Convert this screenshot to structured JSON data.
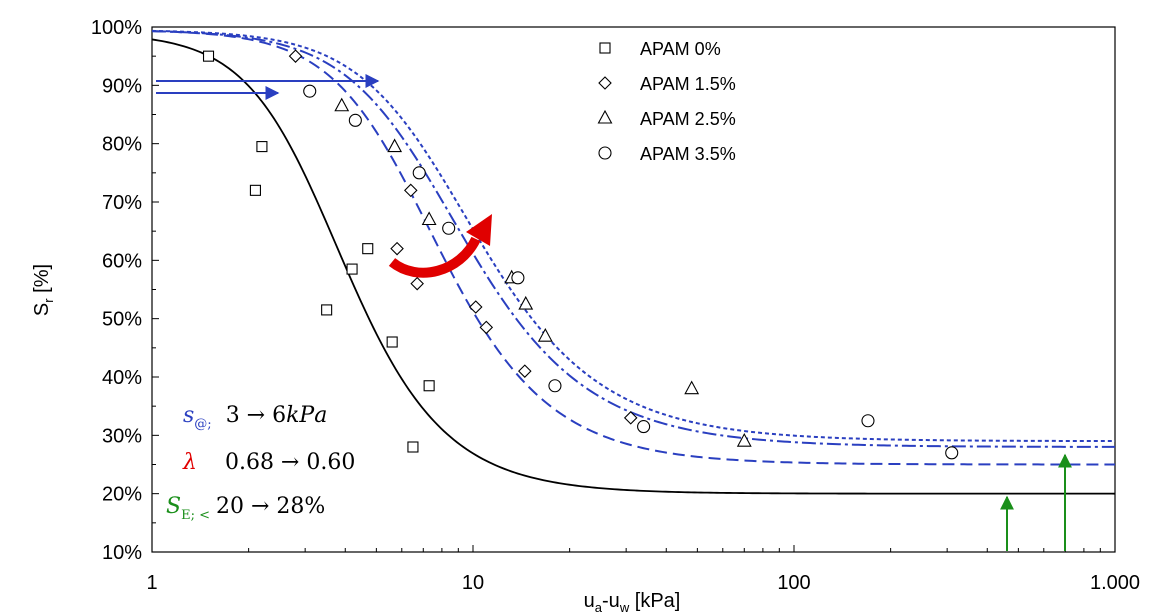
{
  "chart_data": {
    "type": "scatter",
    "x_axis": {
      "label_main": "u",
      "label_sub_a": "a",
      "label_mid": "-u",
      "label_sub_w": "w",
      "label_tail": " [kPa]",
      "scale": "log",
      "range": [
        1,
        1000
      ],
      "ticks": [
        1,
        10,
        100,
        1000
      ],
      "tick_labels": [
        "1",
        "10",
        "100",
        "1.000"
      ]
    },
    "y_axis": {
      "label_main": "S",
      "label_sub": "r",
      "label_tail": " [%]",
      "range": [
        10,
        100
      ],
      "ticks": [
        10,
        20,
        30,
        40,
        50,
        60,
        70,
        80,
        90,
        100
      ],
      "tick_labels": [
        "10%",
        "20%",
        "30%",
        "40%",
        "50%",
        "60%",
        "70%",
        "80%",
        "90%",
        "100%"
      ]
    },
    "grid": false,
    "legend_position": "top-center",
    "series": [
      {
        "name": "APAM 0%",
        "marker": "square",
        "points": [
          [
            1.5,
            95
          ],
          [
            2.1,
            72
          ],
          [
            2.2,
            79.5
          ],
          [
            3.5,
            51.5
          ],
          [
            4.2,
            58.5
          ],
          [
            4.7,
            62
          ],
          [
            5.6,
            46
          ],
          [
            6.5,
            28
          ],
          [
            7.3,
            38.5
          ]
        ]
      },
      {
        "name": "APAM 1.5%",
        "marker": "diamond",
        "points": [
          [
            2.8,
            95
          ],
          [
            5.8,
            62
          ],
          [
            6.4,
            72
          ],
          [
            6.7,
            56
          ],
          [
            10.2,
            52
          ],
          [
            11,
            48.5
          ],
          [
            14.5,
            41
          ],
          [
            31,
            33
          ]
        ]
      },
      {
        "name": "APAM 2.5%",
        "marker": "triangle",
        "points": [
          [
            3.9,
            86.5
          ],
          [
            5.7,
            79.5
          ],
          [
            7.3,
            67
          ],
          [
            13.2,
            57
          ],
          [
            14.6,
            52.5
          ],
          [
            16.8,
            47
          ],
          [
            48,
            38
          ],
          [
            70,
            29
          ]
        ]
      },
      {
        "name": "APAM 3.5%",
        "marker": "circle",
        "points": [
          [
            3.1,
            89
          ],
          [
            4.3,
            84
          ],
          [
            6.8,
            75
          ],
          [
            8.4,
            65.5
          ],
          [
            13.8,
            57
          ],
          [
            18,
            38.5
          ],
          [
            34,
            31.5
          ],
          [
            170,
            32.5
          ],
          [
            310,
            27
          ]
        ]
      }
    ],
    "fitted_curves": [
      {
        "style": "solid",
        "color": "#000000",
        "Sres": 20,
        "Smax": 99,
        "alpha": 0.3,
        "n": 3.2
      },
      {
        "style": "long-dash",
        "color": "#2a3fc0",
        "Sres": 25,
        "Smax": 99.5,
        "alpha": 0.158,
        "n": 2.95
      },
      {
        "style": "dash-dot",
        "color": "#2a3fc0",
        "Sres": 28,
        "Smax": 99.5,
        "alpha": 0.138,
        "n": 2.7
      },
      {
        "style": "short-dash",
        "color": "#2a3fc0",
        "Sres": 29,
        "Smax": 99.5,
        "alpha": 0.126,
        "n": 2.7
      }
    ],
    "annotations": [
      {
        "symbol": "s",
        "subscript": "@;",
        "text": "3 → 6𝑘𝑃𝑎",
        "color": "#2a3fc0"
      },
      {
        "symbol": "λ",
        "subscript": "",
        "text": "0.68 → 0.60",
        "color": "#e00000"
      },
      {
        "symbol": "S",
        "subscript": "E; <",
        "text": "20 → 28%",
        "color": "#1a8f1a"
      }
    ],
    "colors": {
      "blue": "#2a3fc0",
      "red": "#e00000",
      "green": "#1a8f1a",
      "black": "#000000"
    }
  }
}
